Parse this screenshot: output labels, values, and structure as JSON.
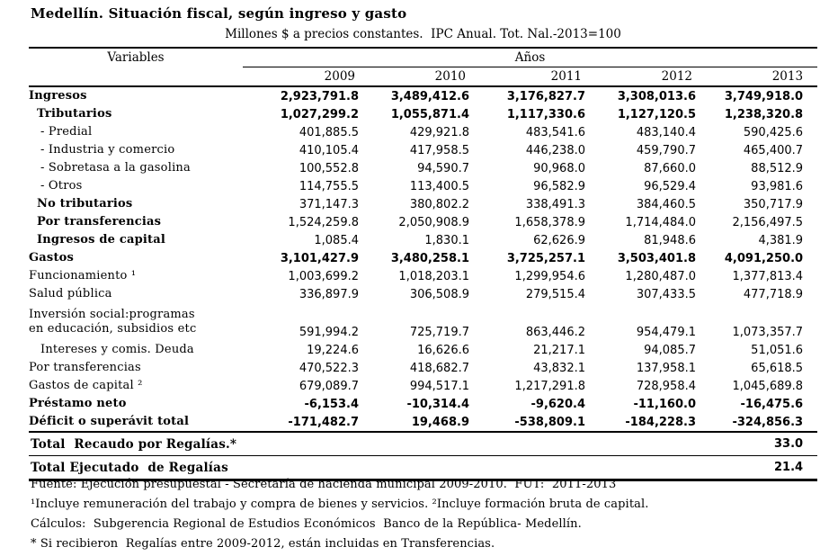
{
  "title": "Medellín. Situación fiscal, según ingreso y gasto",
  "subtitle": "Millones $ a precios constantes.  IPC Anual. Tot. Nal.-2013=100",
  "table": {
    "variables_header": "Variables",
    "years_header": "Años",
    "years": [
      "2009",
      "2010",
      "2011",
      "2012",
      "2013"
    ],
    "rows": [
      {
        "label": "Ingresos",
        "indent": 0,
        "bold_label": true,
        "bold_values": true,
        "values": [
          "2,923,791.8",
          "3,489,412.6",
          "3,176,827.7",
          "3,308,013.6",
          "3,749,918.0"
        ]
      },
      {
        "label": "Tributarios",
        "indent": 1,
        "bold_label": true,
        "bold_values": true,
        "values": [
          "1,027,299.2",
          "1,055,871.4",
          "1,117,330.6",
          "1,127,120.5",
          "1,238,320.8"
        ]
      },
      {
        "label": "- Predial",
        "indent": 2,
        "bold_label": false,
        "bold_values": false,
        "values": [
          "401,885.5",
          "429,921.8",
          "483,541.6",
          "483,140.4",
          "590,425.6"
        ]
      },
      {
        "label": "- Industria y comercio",
        "indent": 2,
        "bold_label": false,
        "bold_values": false,
        "values": [
          "410,105.4",
          "417,958.5",
          "446,238.0",
          "459,790.7",
          "465,400.7"
        ]
      },
      {
        "label": "- Sobretasa a la gasolina",
        "indent": 2,
        "bold_label": false,
        "bold_values": false,
        "values": [
          "100,552.8",
          "94,590.7",
          "90,968.0",
          "87,660.0",
          "88,512.9"
        ]
      },
      {
        "label": "- Otros",
        "indent": 2,
        "bold_label": false,
        "bold_values": false,
        "values": [
          "114,755.5",
          "113,400.5",
          "96,582.9",
          "96,529.4",
          "93,981.6"
        ]
      },
      {
        "label": "No tributarios",
        "indent": 1,
        "bold_label": true,
        "bold_values": false,
        "values": [
          "371,147.3",
          "380,802.2",
          "338,491.3",
          "384,460.5",
          "350,717.9"
        ]
      },
      {
        "label": "Por transferencias",
        "indent": 1,
        "bold_label": true,
        "bold_values": false,
        "values": [
          "1,524,259.8",
          "2,050,908.9",
          "1,658,378.9",
          "1,714,484.0",
          "2,156,497.5"
        ]
      },
      {
        "label": "Ingresos de capital",
        "indent": 1,
        "bold_label": true,
        "bold_values": false,
        "values": [
          "1,085.4",
          "1,830.1",
          "62,626.9",
          "81,948.6",
          "4,381.9"
        ]
      },
      {
        "label": "Gastos",
        "indent": 0,
        "bold_label": true,
        "bold_values": true,
        "values": [
          "3,101,427.9",
          "3,480,258.1",
          "3,725,257.1",
          "3,503,401.8",
          "4,091,250.0"
        ]
      },
      {
        "label": "Funcionamiento ¹",
        "indent": 0,
        "bold_label": false,
        "bold_values": false,
        "values": [
          "1,003,699.2",
          "1,018,203.1",
          "1,299,954.6",
          "1,280,487.0",
          "1,377,813.4"
        ]
      },
      {
        "label": "Salud pública",
        "indent": 0,
        "bold_label": false,
        "bold_values": false,
        "values": [
          "336,897.9",
          "306,508.9",
          "279,515.4",
          "307,433.5",
          "477,718.9"
        ]
      },
      {
        "label": "Inversión social:programas",
        "label_line2": "en educación, subsidios etc",
        "indent": 0,
        "bold_label": false,
        "bold_values": false,
        "values": [
          "591,994.2",
          "725,719.7",
          "863,446.2",
          "954,479.1",
          "1,073,357.7"
        ]
      },
      {
        "label": "Intereses y comis. Deuda",
        "indent": 2,
        "bold_label": false,
        "bold_values": false,
        "values": [
          "19,224.6",
          "16,626.6",
          "21,217.1",
          "94,085.7",
          "51,051.6"
        ]
      },
      {
        "label": "Por transferencias",
        "indent": 0,
        "bold_label": false,
        "bold_values": false,
        "values": [
          "470,522.3",
          "418,682.7",
          "43,832.1",
          "137,958.1",
          "65,618.5"
        ]
      },
      {
        "label": "Gastos de capital ²",
        "indent": 0,
        "bold_label": false,
        "bold_values": false,
        "values": [
          "679,089.7",
          "994,517.1",
          "1,217,291.8",
          "728,958.4",
          "1,045,689.8"
        ]
      },
      {
        "label": "Préstamo neto",
        "indent": 0,
        "bold_label": true,
        "bold_values": true,
        "values": [
          "-6,153.4",
          "-10,314.4",
          "-9,620.4",
          "-11,160.0",
          "-16,475.6"
        ]
      },
      {
        "label": "Déficit o superávit total",
        "indent": 0,
        "bold_label": true,
        "bold_values": true,
        "values": [
          "-171,482.7",
          "19,468.9",
          "-538,809.1",
          "-184,228.3",
          "-324,856.3"
        ]
      }
    ],
    "totals": [
      {
        "label": "Total  Recaudo por Regalías.*",
        "value": "33.0"
      },
      {
        "label": "Total Ejecutado  de Regalías",
        "value": "21.4"
      }
    ]
  },
  "footnotes": [
    "Fuente: Ejecución presupuestal - Secretaría de hacienda municipal 2009-2010.  FUT:  2011-2013",
    "¹Incluye remuneración del trabajo y compra de bienes y servicios. ²Incluye formación bruta de capital.",
    "Cálculos:  Subgerencia Regional de Estudios Económicos  Banco de la República- Medellín.",
    "* Si recibieron  Regalías entre 2009-2012, están incluidas en Transferencias."
  ],
  "colors": {
    "text": "#000000",
    "background": "#ffffff",
    "rule": "#000000"
  }
}
